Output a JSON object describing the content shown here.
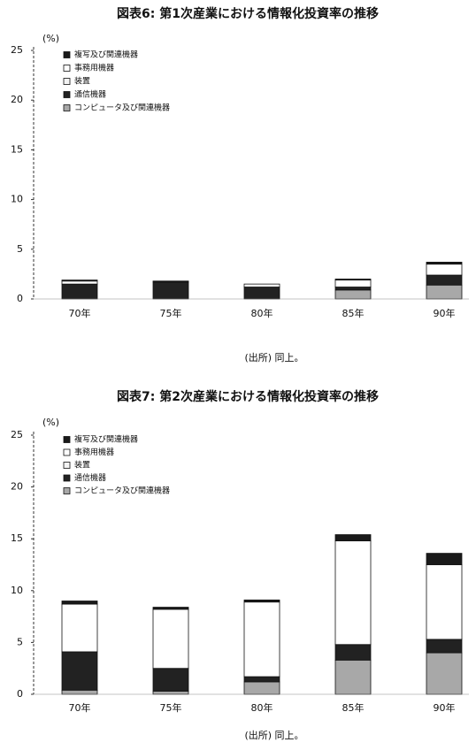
{
  "chart_data": [
    {
      "type": "bar",
      "stacked": true,
      "title": "図表6: 第1次産業における情報化投資率の推移",
      "ylabel": "(%)",
      "source": "(出所) 同上。",
      "categories": [
        "70年",
        "75年",
        "80年",
        "85年",
        "90年"
      ],
      "ylim": [
        0,
        25
      ],
      "yticks": [
        0,
        5,
        10,
        15,
        20,
        25
      ],
      "series": [
        {
          "name": "コンピュータ及び関連機器",
          "color": "#a8a8a8",
          "values": [
            0,
            0,
            0,
            0.9,
            1.4
          ]
        },
        {
          "name": "通信機器",
          "color": "#222222",
          "values": [
            1.5,
            1.7,
            1.2,
            0.3,
            1.0
          ]
        },
        {
          "name": "装置",
          "color": "#f4f4f4",
          "values": [
            0,
            0,
            0,
            0,
            0
          ]
        },
        {
          "name": "事務用機器",
          "color": "#ffffff",
          "values": [
            0.3,
            0,
            0.3,
            0.7,
            1.1
          ]
        },
        {
          "name": "複写及び関連機器",
          "color": "#1a1a1a",
          "values": [
            0.1,
            0.1,
            0,
            0.1,
            0.2
          ]
        }
      ]
    },
    {
      "type": "bar",
      "stacked": true,
      "title": "図表7: 第2次産業における情報化投資率の推移",
      "ylabel": "(%)",
      "source": "(出所) 同上。",
      "categories": [
        "70年",
        "75年",
        "80年",
        "85年",
        "90年"
      ],
      "ylim": [
        0,
        25
      ],
      "yticks": [
        0,
        5,
        10,
        15,
        20,
        25
      ],
      "series": [
        {
          "name": "コンピュータ及び関連機器",
          "color": "#a8a8a8",
          "values": [
            0.4,
            0.3,
            1.2,
            3.3,
            4.0
          ]
        },
        {
          "name": "通信機器",
          "color": "#222222",
          "values": [
            3.7,
            2.2,
            0.5,
            1.5,
            1.3
          ]
        },
        {
          "name": "装置",
          "color": "#f4f4f4",
          "values": [
            0,
            0,
            0,
            0,
            0
          ]
        },
        {
          "name": "事務用機器",
          "color": "#ffffff",
          "values": [
            4.6,
            5.7,
            7.2,
            10.0,
            7.2
          ]
        },
        {
          "name": "複写及び関連機器",
          "color": "#1a1a1a",
          "values": [
            0.3,
            0.2,
            0.2,
            0.6,
            1.1
          ]
        }
      ]
    }
  ]
}
